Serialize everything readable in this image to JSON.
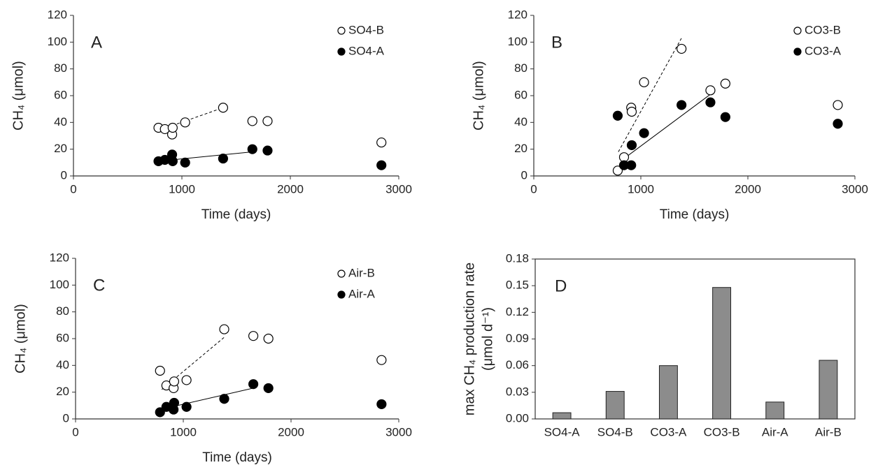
{
  "chart_data": [
    {
      "type": "scatter",
      "label": "A",
      "xlabel": "Time (days)",
      "ylabel": "CH₄ (μmol)",
      "x": [
        784,
        843,
        910,
        915,
        1030,
        1380,
        1650,
        1790,
        2840
      ],
      "series": [
        {
          "name": "SO4-B",
          "color": "#000000",
          "filled": false,
          "values": [
            36,
            35,
            31,
            36,
            40,
            51,
            41,
            41,
            25
          ]
        },
        {
          "name": "SO4-A",
          "color": "#000000",
          "filled": true,
          "values": [
            11,
            12,
            16,
            11,
            10,
            13,
            20,
            19,
            8
          ]
        }
      ],
      "fits": [
        {
          "style": "dashed",
          "x": [
            784,
            1380
          ],
          "y": [
            34,
            51
          ]
        },
        {
          "style": "solid",
          "x": [
            784,
            1650
          ],
          "y": [
            11,
            18
          ]
        }
      ],
      "xlim": [
        0,
        3000
      ],
      "xticks": [
        0,
        1000,
        2000,
        3000
      ],
      "ylim": [
        0,
        120
      ],
      "yticks": [
        0,
        20,
        40,
        60,
        80,
        100,
        120
      ]
    },
    {
      "type": "scatter",
      "label": "B",
      "xlabel": "Time (days)",
      "ylabel": "CH₄ (μmol)",
      "x": [
        784,
        843,
        910,
        915,
        1030,
        1380,
        1650,
        1790,
        2840
      ],
      "series": [
        {
          "name": "CO3-B",
          "color": "#000000",
          "filled": false,
          "values": [
            4,
            14,
            51,
            48,
            70,
            95,
            64,
            69,
            53
          ]
        },
        {
          "name": "CO3-A",
          "color": "#000000",
          "filled": true,
          "values": [
            45,
            8,
            8,
            23,
            32,
            53,
            55,
            44,
            39
          ]
        }
      ],
      "fits": [
        {
          "style": "dashed",
          "x": [
            790,
            1380
          ],
          "y": [
            18,
            103
          ]
        },
        {
          "style": "solid",
          "x": [
            843,
            1650
          ],
          "y": [
            13,
            61
          ]
        }
      ],
      "xlim": [
        0,
        3000
      ],
      "xticks": [
        0,
        1000,
        2000,
        3000
      ],
      "ylim": [
        0,
        120
      ],
      "yticks": [
        0,
        20,
        40,
        60,
        80,
        100,
        120
      ]
    },
    {
      "type": "scatter",
      "label": "C",
      "xlabel": "Time (days)",
      "ylabel": "CH₄ (μmol)",
      "x": [
        784,
        843,
        910,
        915,
        1030,
        1380,
        1650,
        1790,
        2840
      ],
      "series": [
        {
          "name": "Air-B",
          "color": "#000000",
          "filled": false,
          "values": [
            36,
            25,
            23,
            28,
            29,
            67,
            62,
            60,
            44
          ]
        },
        {
          "name": "Air-A",
          "color": "#000000",
          "filled": true,
          "values": [
            5,
            9,
            7,
            12,
            9,
            15,
            26,
            23,
            11
          ]
        }
      ],
      "fits": [
        {
          "style": "dashed",
          "x": [
            800,
            1380
          ],
          "y": [
            22,
            61
          ]
        },
        {
          "style": "solid",
          "x": [
            784,
            1650
          ],
          "y": [
            7,
            23
          ]
        }
      ],
      "xlim": [
        0,
        3000
      ],
      "xticks": [
        0,
        1000,
        2000,
        3000
      ],
      "ylim": [
        0,
        120
      ],
      "yticks": [
        0,
        20,
        40,
        60,
        80,
        100,
        120
      ]
    },
    {
      "type": "bar",
      "label": "D",
      "ylabel": [
        "max CH₄ production rate",
        "(μmol d⁻¹)"
      ],
      "categories": [
        "SO4-A",
        "SO4-B",
        "CO3-A",
        "CO3-B",
        "Air-A",
        "Air-B"
      ],
      "values": [
        0.007,
        0.031,
        0.06,
        0.148,
        0.019,
        0.066
      ],
      "color": "#8c8c8c",
      "ylim": [
        0,
        0.18
      ],
      "yticks": [
        {
          "value": 0,
          "label": "0.00"
        },
        0.03,
        0.06,
        0.09,
        0.12,
        0.15,
        0.18
      ]
    }
  ]
}
